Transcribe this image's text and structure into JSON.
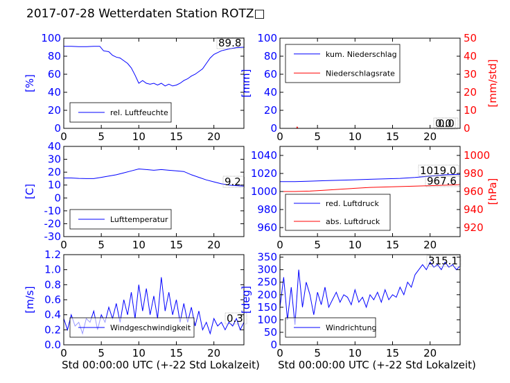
{
  "figure": {
    "title": "2017-07-28 Wetterdaten Station ROTZ□"
  },
  "colors": {
    "primary": "#0000ff",
    "secondary": "#ff0000",
    "axis": "#000000"
  },
  "chart_data": [
    {
      "id": "humidity",
      "type": "line",
      "ylabel": "[%]",
      "xlabel": "",
      "xlim": [
        0,
        24
      ],
      "ylim": [
        0,
        100
      ],
      "xticks": [
        0,
        5,
        10,
        15,
        20
      ],
      "yticks": [
        0,
        20,
        40,
        60,
        80,
        100
      ],
      "legend_position": "lower-left",
      "annotations": [
        "89.8"
      ],
      "series": [
        {
          "name": "rel. Luftfeuchte",
          "color": "#0000ff",
          "axis": "left",
          "x": [
            0,
            1,
            2,
            3,
            4,
            4.8,
            5.3,
            6,
            6.5,
            7,
            7.5,
            8,
            8.5,
            9,
            9.5,
            10,
            10.5,
            11,
            11.5,
            12,
            12.5,
            13,
            13.5,
            14,
            14.5,
            15,
            15.5,
            16,
            16.5,
            17,
            17.5,
            18,
            18.5,
            19,
            19.5,
            20,
            21,
            22,
            23,
            24
          ],
          "y": [
            91,
            91,
            90.5,
            90.5,
            91,
            91,
            86,
            85,
            81,
            79,
            78,
            75,
            72,
            67,
            59,
            50,
            53,
            50,
            49,
            50,
            48,
            50,
            47,
            49,
            47,
            48,
            50,
            53,
            55,
            58,
            60,
            63,
            66,
            72,
            78,
            82,
            86,
            88,
            89.5,
            90
          ]
        }
      ]
    },
    {
      "id": "precipitation",
      "type": "line",
      "ylabel": "[mm]",
      "y2label": "[mm/std]",
      "xlabel": "",
      "xlim": [
        0,
        24
      ],
      "ylim": [
        0,
        100
      ],
      "y2lim": [
        0,
        50
      ],
      "xticks": [
        0,
        5,
        10,
        15,
        20
      ],
      "yticks": [
        0,
        20,
        40,
        60,
        80,
        100
      ],
      "y2ticks": [
        0,
        10,
        20,
        30,
        40,
        50
      ],
      "legend_position": "upper-left",
      "annotations": [
        "0.0",
        "0.0"
      ],
      "series": [
        {
          "name": "kum. Niederschlag",
          "color": "#0000ff",
          "axis": "left",
          "x": [
            0,
            24
          ],
          "y": [
            0,
            0
          ]
        },
        {
          "name": "Niederschlagsrate",
          "color": "#ff0000",
          "axis": "right",
          "x": [
            0,
            2.2,
            2.3,
            2.4,
            24
          ],
          "y": [
            0,
            0,
            0.8,
            0,
            0
          ]
        }
      ]
    },
    {
      "id": "temperature",
      "type": "line",
      "ylabel": "[C]",
      "xlabel": "",
      "xlim": [
        0,
        24
      ],
      "ylim": [
        -30,
        40
      ],
      "xticks": [
        0,
        5,
        10,
        15,
        20
      ],
      "yticks": [
        -30,
        -20,
        -10,
        0,
        10,
        20,
        30,
        40
      ],
      "legend_position": "lower-left",
      "annotations": [
        "9.2"
      ],
      "series": [
        {
          "name": "Lufttemperatur",
          "color": "#0000ff",
          "axis": "left",
          "x": [
            0,
            1,
            2,
            3,
            4,
            5,
            6,
            7,
            8,
            9,
            10,
            11,
            12,
            13,
            14,
            15,
            16,
            17,
            18,
            19,
            20,
            21,
            22,
            23,
            24
          ],
          "y": [
            15.5,
            15.5,
            15.2,
            15,
            15,
            16,
            17,
            18,
            19.5,
            21,
            22.5,
            22,
            21.5,
            22,
            21.5,
            21,
            20.5,
            18,
            16,
            14,
            12.5,
            11,
            10,
            9.5,
            9.2
          ]
        }
      ]
    },
    {
      "id": "pressure",
      "type": "line",
      "ylabel": "",
      "y2label": "[hPa]",
      "xlabel": "",
      "xlim": [
        0,
        24
      ],
      "ylim": [
        950,
        1050
      ],
      "y2lim": [
        910,
        1010
      ],
      "xticks": [
        0,
        5,
        10,
        15,
        20
      ],
      "yticks": [
        960,
        980,
        1000,
        1020,
        1040
      ],
      "y2ticks": [
        920,
        940,
        960,
        980,
        1000
      ],
      "legend_position": "lower-left",
      "annotations": [
        "1019.0",
        "967.6"
      ],
      "series": [
        {
          "name": "red. Luftdruck",
          "color": "#0000ff",
          "axis": "left",
          "x": [
            0,
            2,
            4,
            6,
            8,
            10,
            12,
            14,
            16,
            18,
            20,
            22,
            24
          ],
          "y": [
            1011,
            1011,
            1011.5,
            1012,
            1012.5,
            1013,
            1013.5,
            1014,
            1014.5,
            1015.5,
            1017,
            1018.5,
            1019
          ]
        },
        {
          "name": "abs. Luftdruck",
          "color": "#ff0000",
          "axis": "right",
          "x": [
            0,
            2,
            4,
            6,
            8,
            10,
            12,
            14,
            16,
            18,
            20,
            22,
            24
          ],
          "y": [
            960,
            960,
            960.5,
            961.5,
            962.5,
            963.5,
            964.5,
            965,
            965.5,
            966,
            966.5,
            967,
            967.6
          ]
        }
      ]
    },
    {
      "id": "windspeed",
      "type": "line",
      "ylabel": "[m/s]",
      "xlabel": "Std 00:00:00 UTC (+-22 Std Lokalzeit)",
      "xlim": [
        0,
        24
      ],
      "ylim": [
        0,
        1.2
      ],
      "xticks": [
        0,
        5,
        10,
        15,
        20
      ],
      "yticks": [
        0,
        0.2,
        0.4,
        0.6,
        0.8,
        1.0,
        1.2
      ],
      "legend_position": "lower-left",
      "annotations": [
        "0.3"
      ],
      "series": [
        {
          "name": "Windgeschwindigkeit",
          "color": "#0000ff",
          "axis": "left",
          "x": [
            0,
            0.5,
            1,
            1.5,
            2,
            2.5,
            3,
            3.5,
            4,
            4.5,
            5,
            5.5,
            6,
            6.5,
            7,
            7.5,
            8,
            8.5,
            9,
            9.5,
            10,
            10.5,
            11,
            11.5,
            12,
            12.5,
            13,
            13.5,
            14,
            14.5,
            15,
            15.5,
            16,
            16.5,
            17,
            17.5,
            18,
            18.5,
            19,
            19.5,
            20,
            20.5,
            21,
            21.5,
            22,
            22.5,
            23,
            23.5,
            24
          ],
          "y": [
            0.35,
            0.2,
            0.4,
            0.25,
            0.3,
            0.15,
            0.35,
            0.3,
            0.45,
            0.2,
            0.4,
            0.3,
            0.5,
            0.35,
            0.55,
            0.3,
            0.6,
            0.4,
            0.7,
            0.35,
            0.8,
            0.45,
            0.75,
            0.4,
            0.65,
            0.35,
            0.9,
            0.45,
            0.7,
            0.4,
            0.6,
            0.3,
            0.55,
            0.3,
            0.5,
            0.25,
            0.45,
            0.2,
            0.3,
            0.15,
            0.35,
            0.25,
            0.3,
            0.2,
            0.3,
            0.25,
            0.35,
            0.2,
            0.3
          ]
        }
      ]
    },
    {
      "id": "winddirection",
      "type": "line",
      "ylabel": "[deg]",
      "xlabel": "Std 00:00:00 UTC (+-22 Std Lokalzeit)",
      "xlim": [
        0,
        24
      ],
      "ylim": [
        0,
        360
      ],
      "xticks": [
        0,
        5,
        10,
        15,
        20
      ],
      "yticks": [
        0,
        50,
        100,
        150,
        200,
        250,
        300,
        350
      ],
      "legend_position": "lower-left",
      "annotations": [
        "315.1"
      ],
      "series": [
        {
          "name": "Windrichtung",
          "color": "#0000ff",
          "axis": "left",
          "x": [
            0,
            0.5,
            1,
            1.5,
            2,
            2.5,
            3,
            3.5,
            4,
            4.5,
            5,
            5.5,
            6,
            6.5,
            7,
            7.5,
            8,
            8.5,
            9,
            9.5,
            10,
            10.5,
            11,
            11.5,
            12,
            12.5,
            13,
            13.5,
            14,
            14.5,
            15,
            15.5,
            16,
            16.5,
            17,
            17.5,
            18,
            18.5,
            19,
            19.5,
            20,
            20.5,
            21,
            21.5,
            22,
            22.5,
            23,
            23.5,
            24
          ],
          "y": [
            150,
            270,
            100,
            230,
            80,
            300,
            150,
            250,
            200,
            120,
            210,
            160,
            230,
            150,
            180,
            210,
            170,
            200,
            190,
            160,
            220,
            170,
            190,
            150,
            200,
            180,
            210,
            170,
            220,
            180,
            200,
            190,
            230,
            200,
            250,
            230,
            280,
            300,
            320,
            300,
            330,
            310,
            320,
            300,
            330,
            310,
            320,
            300,
            315
          ]
        }
      ]
    }
  ]
}
